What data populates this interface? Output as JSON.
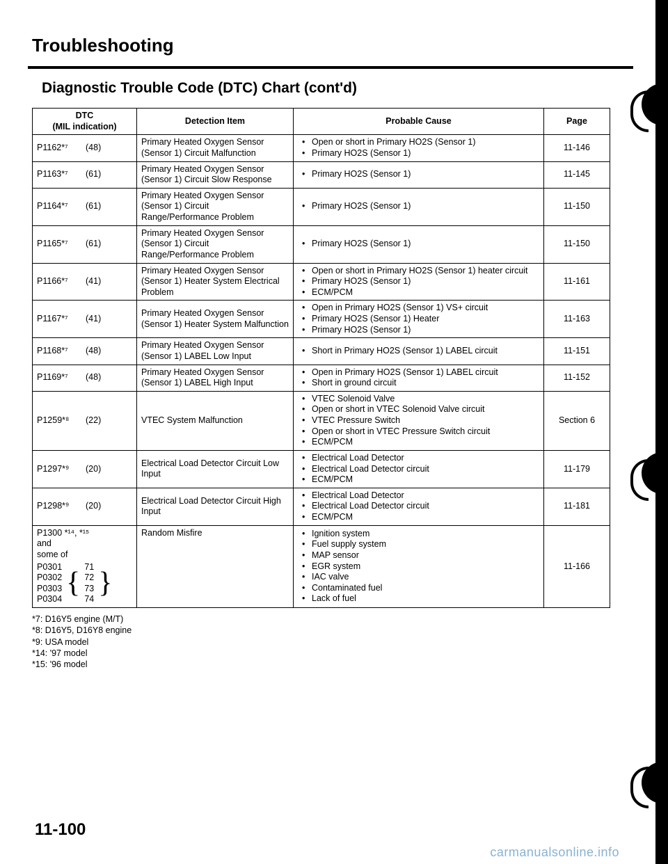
{
  "title": "Troubleshooting",
  "subtitle": "Diagnostic Trouble Code (DTC) Chart (cont'd)",
  "headers": {
    "dtc": "DTC\n(MIL indication)",
    "detection": "Detection Item",
    "cause": "Probable Cause",
    "page": "Page"
  },
  "rows": [
    {
      "code": "P1162*⁷",
      "mil": "(48)",
      "detection": "Primary Heated Oxygen Sensor (Sensor 1) Circuit Malfunction",
      "cause": [
        "Open or short in Primary HO2S (Sensor 1)",
        "Primary HO2S (Sensor 1)"
      ],
      "page": "11-146"
    },
    {
      "code": "P1163*⁷",
      "mil": "(61)",
      "detection": "Primary Heated Oxygen Sensor (Sensor 1) Circuit Slow Response",
      "cause": [
        "Primary HO2S (Sensor 1)"
      ],
      "page": "11-145"
    },
    {
      "code": "P1164*⁷",
      "mil": "(61)",
      "detection": "Primary Heated Oxygen Sensor (Sensor 1) Circuit Range/Performance Problem",
      "cause": [
        "Primary HO2S (Sensor 1)"
      ],
      "page": "11-150"
    },
    {
      "code": "P1165*⁷",
      "mil": "(61)",
      "detection": "Primary Heated Oxygen Sensor (Sensor 1) Circuit Range/Performance Problem",
      "cause": [
        "Primary HO2S (Sensor 1)"
      ],
      "page": "11-150"
    },
    {
      "code": "P1166*⁷",
      "mil": "(41)",
      "detection": "Primary Heated Oxygen Sensor (Sensor 1) Heater System Electrical Problem",
      "cause": [
        "Open or short in Primary HO2S (Sensor 1) heater circuit",
        "Primary HO2S (Sensor 1)",
        "ECM/PCM"
      ],
      "page": "11-161"
    },
    {
      "code": "P1167*⁷",
      "mil": "(41)",
      "detection": "Primary Heated Oxygen Sensor (Sensor 1) Heater System Malfunction",
      "cause": [
        "Open in Primary HO2S (Sensor 1) VS+ circuit",
        "Primary HO2S (Sensor 1) Heater",
        "Primary HO2S (Sensor 1)"
      ],
      "page": "11-163"
    },
    {
      "code": "P1168*⁷",
      "mil": "(48)",
      "detection": "Primary Heated Oxygen Sensor (Sensor 1) LABEL Low Input",
      "cause": [
        "Short in Primary HO2S (Sensor 1) LABEL circuit"
      ],
      "page": "11-151"
    },
    {
      "code": "P1169*⁷",
      "mil": "(48)",
      "detection": "Primary Heated Oxygen Sensor (Sensor 1) LABEL High Input",
      "cause": [
        "Open in Primary HO2S (Sensor 1) LABEL circuit",
        "Short in ground circuit"
      ],
      "page": "11-152"
    },
    {
      "code": "P1259*⁸",
      "mil": "(22)",
      "detection": "VTEC System Malfunction",
      "cause": [
        "VTEC Solenoid Valve",
        "Open or short in VTEC Solenoid Valve circuit",
        "VTEC Pressure Switch",
        "Open or short in VTEC Pressure Switch circuit",
        "ECM/PCM"
      ],
      "page": "Section 6"
    },
    {
      "code": "P1297*⁹",
      "mil": "(20)",
      "detection": "Electrical Load Detector Circuit Low Input",
      "cause": [
        "Electrical Load Detector",
        "Electrical Load Detector circuit",
        "ECM/PCM"
      ],
      "page": "11-179"
    },
    {
      "code": "P1298*⁹",
      "mil": "(20)",
      "detection": "Electrical Load Detector Circuit High Input",
      "cause": [
        "Electrical Load Detector",
        "Electrical Load Detector circuit",
        "ECM/PCM"
      ],
      "page": "11-181"
    }
  ],
  "complex_row": {
    "header": "P1300 *¹⁴, *¹⁵",
    "and": "and",
    "some_of": "some of",
    "sub_left": [
      "P0301",
      "P0302",
      "P0303",
      "P0304"
    ],
    "sub_right": [
      "71",
      "72",
      "73",
      "74"
    ],
    "detection": "Random Misfire",
    "cause": [
      "Ignition system",
      "Fuel supply system",
      "MAP sensor",
      "EGR system",
      "IAC valve",
      "Contaminated fuel",
      "Lack of fuel"
    ],
    "page": "11-166"
  },
  "footnotes": [
    "*7: D16Y5 engine (M/T)",
    "*8: D16Y5, D16Y8 engine",
    "*9: USA model",
    "*14: '97 model",
    "*15: '96 model"
  ],
  "page_number": "11-100",
  "watermark": "carmanualsonline.info"
}
